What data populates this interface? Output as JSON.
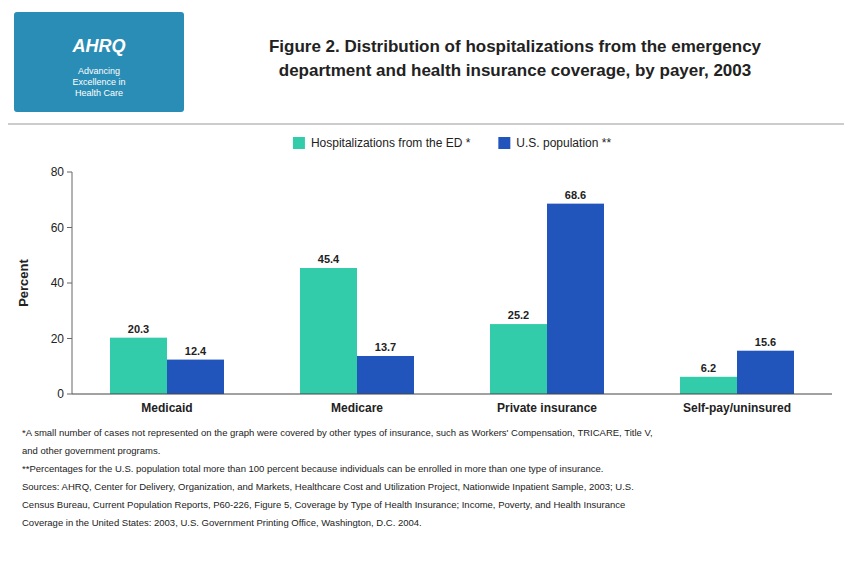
{
  "chart_data": {
    "type": "bar",
    "title": "Figure 2. Distribution of hospitalizations from the emergency\ndepartment and health insurance coverage, by payer, 2003",
    "categories": [
      "Medicaid",
      "Medicare",
      "Private insurance",
      "Self-pay/uninsured"
    ],
    "series": [
      {
        "name": "Hospitalizations from the ED *",
        "color": "#33CCAA",
        "values": [
          20.3,
          45.4,
          25.2,
          6.2
        ]
      },
      {
        "name": "U.S. population **",
        "color": "#2255BB",
        "values": [
          12.4,
          13.7,
          68.6,
          15.6
        ]
      }
    ],
    "y_label": "Percent",
    "ylim": [
      0,
      80
    ],
    "yticks": [
      0,
      20,
      40,
      60,
      80
    ],
    "grid": false,
    "legend": "top",
    "data_labels": true,
    "annotations": [
      "AHRQ",
      "Advancing\nExcellence in\nHealth Care",
      "*A small number of cases not represented on the graph were covered by other types of insurance, such as Workers' Compensation, TRICARE, Title V,",
      "and other government programs.",
      "**Percentages for the U.S. population total more than 100 percent because individuals can be enrolled in more than one type of insurance.",
      "Sources: AHRQ, Center for Delivery, Organization, and Markets, Healthcare Cost and Utilization Project, Nationwide Inpatient Sample, 2003; U.S.",
      "Census Bureau, Current Population Reports, P60-226, Figure 5, Coverage by Type of Health Insurance; Income, Poverty, and Health Insurance",
      "Coverage in the United States: 2003, U.S. Government Printing Office, Washington, D.C. 2004."
    ]
  }
}
